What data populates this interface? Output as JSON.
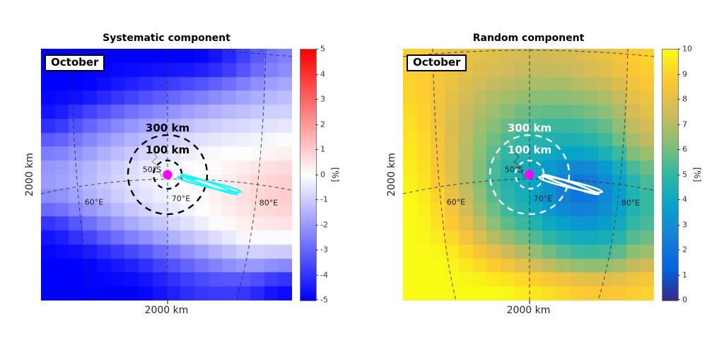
{
  "chart_data": [
    {
      "type": "heatmap",
      "title": "Systematic component",
      "month": "October",
      "xlabel": "2000 km",
      "ylabel": "2000 km",
      "colorbar_label": "[%]",
      "colormap": "blue-white-red",
      "zlim": [
        -5,
        5
      ],
      "colorbar_ticks": [
        "5",
        "4",
        "3",
        "2",
        "1",
        "0",
        "-1",
        "-2",
        "-3",
        "-4",
        "-5"
      ],
      "overlay": {
        "ring_outer_label": "300 km",
        "ring_inner_label": "100 km",
        "lat_label": "50°S",
        "lon_labels": [
          "60°E",
          "70°E",
          "80°E"
        ],
        "marker_color": "#ff00ff",
        "ellipse_color": "#00ffff",
        "ring_color": "#000000",
        "island_color": "#999999"
      },
      "grid_rows": 9,
      "grid_cols": 9,
      "values": [
        [
          -5,
          -5,
          -5,
          -5,
          -5,
          -5,
          -4.5,
          -3.5,
          -2.5
        ],
        [
          -5,
          -5,
          -4.5,
          -4,
          -3.5,
          -3,
          -2.5,
          -2,
          -1.5
        ],
        [
          -4.5,
          -3.5,
          -2.8,
          -2.2,
          -1.8,
          -1.4,
          -1.1,
          -0.9,
          -0.7
        ],
        [
          -2.8,
          -2.2,
          -1.6,
          -1.1,
          -0.7,
          -0.4,
          -0.2,
          -0.1,
          0.1
        ],
        [
          -1.8,
          -1.4,
          -0.9,
          -0.4,
          -0.1,
          0.1,
          0.3,
          0.6,
          0.9
        ],
        [
          -2.4,
          -1.8,
          -1.2,
          -0.7,
          -0.3,
          0,
          0.4,
          0.7,
          1
        ],
        [
          -4.5,
          -3.5,
          -2.5,
          -1.8,
          -1.2,
          -0.6,
          -0.1,
          0.3,
          0.4
        ],
        [
          -5,
          -5,
          -4.5,
          -4,
          -3.2,
          -2.5,
          -1.8,
          -1.2,
          -1.5
        ],
        [
          -5,
          -5,
          -5,
          -5,
          -4.5,
          -4,
          -3.8,
          -4,
          -4.8
        ]
      ]
    },
    {
      "type": "heatmap",
      "title": "Random component",
      "month": "October",
      "xlabel": "2000 km",
      "ylabel": "2000 km",
      "colorbar_label": "[%]",
      "colormap": "parula",
      "zlim": [
        0,
        10
      ],
      "colorbar_ticks": [
        "10",
        "9",
        "8",
        "7",
        "6",
        "5",
        "4",
        "3",
        "2",
        "1",
        "0"
      ],
      "overlay": {
        "ring_outer_label": "300 km",
        "ring_inner_label": "100 km",
        "lat_label": "50°S",
        "lon_labels": [
          "60°E",
          "70°E",
          "80°E"
        ],
        "marker_color": "#ff00ff",
        "ellipse_color": "#ffffff",
        "ring_color": "#ffffff",
        "island_color": "#555555"
      },
      "grid_rows": 9,
      "grid_cols": 9,
      "values": [
        [
          9,
          8.5,
          8,
          7.8,
          7.5,
          7.5,
          7.8,
          8.3,
          9
        ],
        [
          9,
          8.3,
          7.5,
          7,
          6.6,
          6.5,
          6.8,
          7.3,
          8.5
        ],
        [
          9.3,
          8,
          7,
          6.2,
          5.6,
          5.4,
          5.6,
          6.2,
          7.8
        ],
        [
          9.5,
          8.2,
          6.8,
          5.4,
          4.6,
          4.2,
          4.3,
          5.2,
          7
        ],
        [
          9.7,
          8.3,
          6.5,
          4.8,
          4,
          2.8,
          2,
          3.2,
          5.5
        ],
        [
          10,
          8.8,
          7,
          5.2,
          4.2,
          2.6,
          1.8,
          3,
          5
        ],
        [
          10,
          9.3,
          7.8,
          6.2,
          5.2,
          4.2,
          3.6,
          4,
          5.5
        ],
        [
          10,
          10,
          9.2,
          8.2,
          7.2,
          6.2,
          5.6,
          5.8,
          7
        ],
        [
          10,
          10,
          10,
          10,
          9.6,
          9.2,
          8.8,
          8.6,
          9
        ]
      ]
    }
  ]
}
